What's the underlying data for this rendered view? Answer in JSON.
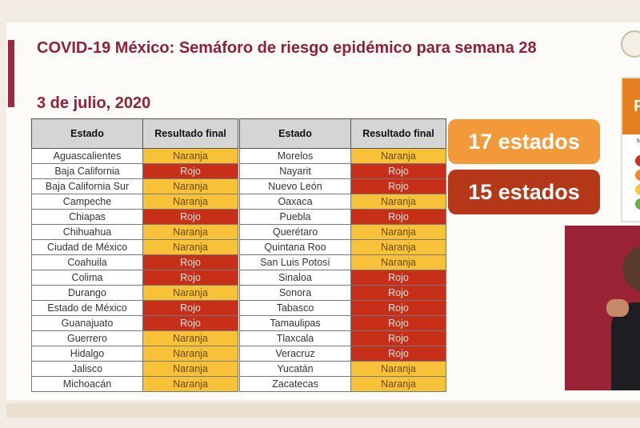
{
  "header": {
    "title": "COVID-19 México: Semáforo de riesgo epidémico para semana 28",
    "date": "3 de julio, 2020"
  },
  "table": {
    "col_estado": "Estado",
    "col_resultado": "Resultado final"
  },
  "rows_left": [
    {
      "estado": "Aguascalientes",
      "resultado": "Naranja"
    },
    {
      "estado": "Baja California",
      "resultado": "Rojo"
    },
    {
      "estado": "Baja California Sur",
      "resultado": "Naranja"
    },
    {
      "estado": "Campeche",
      "resultado": "Naranja"
    },
    {
      "estado": "Chiapas",
      "resultado": "Rojo"
    },
    {
      "estado": "Chihuahua",
      "resultado": "Naranja"
    },
    {
      "estado": "Ciudad de México",
      "resultado": "Naranja"
    },
    {
      "estado": "Coahuila",
      "resultado": "Rojo"
    },
    {
      "estado": "Colima",
      "resultado": "Rojo"
    },
    {
      "estado": "Durango",
      "resultado": "Naranja"
    },
    {
      "estado": "Estado de México",
      "resultado": "Rojo"
    },
    {
      "estado": "Guanajuato",
      "resultado": "Rojo"
    },
    {
      "estado": "Guerrero",
      "resultado": "Naranja"
    },
    {
      "estado": "Hidalgo",
      "resultado": "Naranja"
    },
    {
      "estado": "Jalisco",
      "resultado": "Naranja"
    },
    {
      "estado": "Michoacán",
      "resultado": "Naranja"
    }
  ],
  "rows_right": [
    {
      "estado": "Morelos",
      "resultado": "Naranja"
    },
    {
      "estado": "Nayarit",
      "resultado": "Rojo"
    },
    {
      "estado": "Nuevo León",
      "resultado": "Rojo"
    },
    {
      "estado": "Oaxaca",
      "resultado": "Naranja"
    },
    {
      "estado": "Puebla",
      "resultado": "Rojo"
    },
    {
      "estado": "Querétaro",
      "resultado": "Naranja"
    },
    {
      "estado": "Quintana Roo",
      "resultado": "Naranja"
    },
    {
      "estado": "San Luis Potosí",
      "resultado": "Naranja"
    },
    {
      "estado": "Sinaloa",
      "resultado": "Rojo"
    },
    {
      "estado": "Sonora",
      "resultado": "Rojo"
    },
    {
      "estado": "Tabasco",
      "resultado": "Rojo"
    },
    {
      "estado": "Tamaulipas",
      "resultado": "Rojo"
    },
    {
      "estado": "Tlaxcala",
      "resultado": "Rojo"
    },
    {
      "estado": "Veracruz",
      "resultado": "Rojo"
    },
    {
      "estado": "Yucatán",
      "resultado": "Naranja"
    },
    {
      "estado": "Zacatecas",
      "resultado": "Naranja"
    }
  ],
  "summary": {
    "naranja_count": "17 estados",
    "rojo_count": "15 estados"
  },
  "legend": {
    "header_letter": "P",
    "mini_letter": "N",
    "lights": [
      "#d0331c",
      "#f08a24",
      "#f5c73a",
      "#6ab04c"
    ]
  },
  "colors": {
    "naranja": "#f7c238",
    "rojo": "#c72f18",
    "accent": "#8e2236"
  },
  "icons": {
    "seal": "government-seal-icon",
    "interpreter": "sign-language-interpreter"
  }
}
